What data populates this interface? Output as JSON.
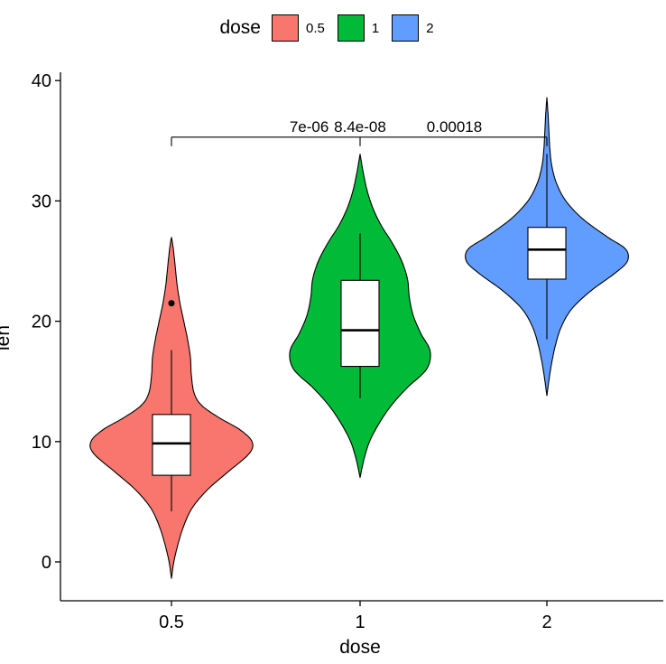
{
  "chart_data": {
    "type": "violin",
    "title": "",
    "xlabel": "dose",
    "ylabel": "len",
    "ylim": [
      -3,
      40.5
    ],
    "yticks": [
      0,
      10,
      20,
      30,
      40
    ],
    "categories": [
      "0.5",
      "1",
      "2"
    ],
    "legend": {
      "title": "dose",
      "position": "top",
      "entries": [
        {
          "label": "0.5",
          "color": "#F8766D"
        },
        {
          "label": "1",
          "color": "#00BA38"
        },
        {
          "label": "2",
          "color": "#619CFF"
        }
      ]
    },
    "series": [
      {
        "name": "0.5",
        "color": "#F8766D",
        "violin_range": [
          -1.4,
          27.0
        ],
        "density": [
          [
            -1.4,
            0.0
          ],
          [
            0,
            0.025
          ],
          [
            1.5,
            0.07
          ],
          [
            3,
            0.13
          ],
          [
            4.5,
            0.22
          ],
          [
            6,
            0.38
          ],
          [
            7.5,
            0.6
          ],
          [
            9,
            0.82
          ],
          [
            10,
            0.85
          ],
          [
            11,
            0.72
          ],
          [
            12,
            0.5
          ],
          [
            13,
            0.32
          ],
          [
            14,
            0.24
          ],
          [
            15.5,
            0.21
          ],
          [
            17,
            0.2
          ],
          [
            18.5,
            0.17
          ],
          [
            20,
            0.13
          ],
          [
            21.5,
            0.09
          ],
          [
            23,
            0.06
          ],
          [
            24.5,
            0.04
          ],
          [
            26,
            0.02
          ],
          [
            27,
            0.0
          ]
        ],
        "box": {
          "min": 4.2,
          "q1": 7.2,
          "median": 9.85,
          "q3": 12.25,
          "max": 17.6
        },
        "outliers": [
          21.5
        ]
      },
      {
        "name": "1",
        "color": "#00BA38",
        "violin_range": [
          7.0,
          33.9
        ],
        "density": [
          [
            7.0,
            0.0
          ],
          [
            8.5,
            0.04
          ],
          [
            10,
            0.1
          ],
          [
            11.5,
            0.2
          ],
          [
            13,
            0.33
          ],
          [
            14.5,
            0.5
          ],
          [
            16,
            0.7
          ],
          [
            17.5,
            0.74
          ],
          [
            19,
            0.64
          ],
          [
            20.5,
            0.56
          ],
          [
            22,
            0.52
          ],
          [
            23.5,
            0.5
          ],
          [
            25,
            0.44
          ],
          [
            26.5,
            0.34
          ],
          [
            28,
            0.22
          ],
          [
            29.5,
            0.13
          ],
          [
            31,
            0.07
          ],
          [
            32.5,
            0.03
          ],
          [
            33.9,
            0.0
          ]
        ],
        "box": {
          "min": 13.6,
          "q1": 16.25,
          "median": 19.25,
          "q3": 23.4,
          "max": 27.3
        },
        "outliers": []
      },
      {
        "name": "2",
        "color": "#619CFF",
        "violin_range": [
          13.8,
          38.6
        ],
        "density": [
          [
            13.8,
            0.0
          ],
          [
            15,
            0.02
          ],
          [
            16.5,
            0.05
          ],
          [
            18,
            0.09
          ],
          [
            19.5,
            0.15
          ],
          [
            21,
            0.26
          ],
          [
            22.5,
            0.46
          ],
          [
            24,
            0.72
          ],
          [
            25,
            0.85
          ],
          [
            26,
            0.83
          ],
          [
            27,
            0.64
          ],
          [
            28.5,
            0.38
          ],
          [
            30,
            0.2
          ],
          [
            31.5,
            0.1
          ],
          [
            33,
            0.05
          ],
          [
            34.5,
            0.03
          ],
          [
            36,
            0.02
          ],
          [
            37.5,
            0.01
          ],
          [
            38.6,
            0.0
          ]
        ],
        "box": {
          "min": 18.5,
          "q1": 23.5,
          "median": 25.95,
          "q3": 27.8,
          "max": 33.9
        },
        "outliers": []
      }
    ],
    "comparisons": {
      "y": 35.3,
      "from": "0.5",
      "to": "2",
      "labels": [
        {
          "x": 0.73,
          "text": "7e-06"
        },
        {
          "x": 1.0,
          "text": "8.4e-08"
        },
        {
          "x": 1.5,
          "text": "0.00018"
        }
      ]
    }
  }
}
